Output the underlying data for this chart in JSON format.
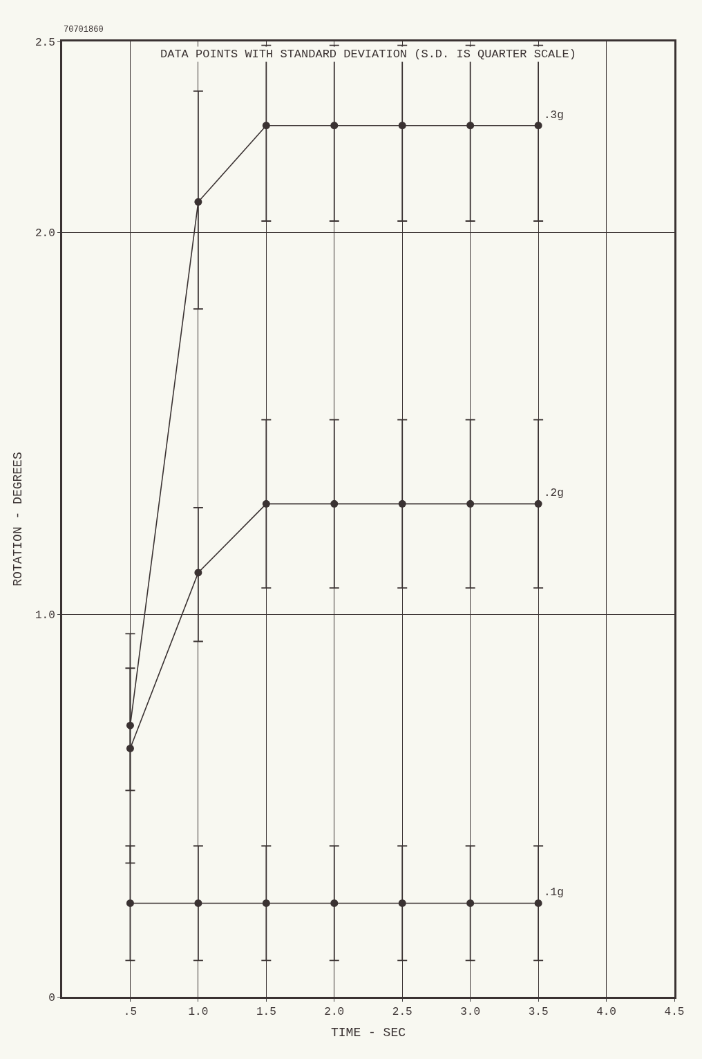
{
  "chart_data": {
    "type": "line",
    "xlabel": "TIME - SEC",
    "ylabel": "ROTATION - DEGREES",
    "annotations": [
      "DATA POINTS WITH STANDARD DEVIATION (S.D. IS QUARTER SCALE)",
      "70701860"
    ],
    "x": [
      0.5,
      1.0,
      1.5,
      2.0,
      2.5,
      3.0,
      3.5
    ],
    "series": [
      {
        "name": ".3g",
        "color": "#3a3232",
        "values": [
          0.71,
          2.08,
          2.28,
          2.28,
          2.28,
          2.28,
          2.28
        ],
        "errors": [
          [
            0.54,
            0.95
          ],
          [
            1.8,
            2.37
          ],
          [
            2.03,
            2.49
          ],
          [
            2.03,
            2.49
          ],
          [
            2.03,
            2.49
          ],
          [
            2.03,
            2.49
          ],
          [
            2.03,
            2.49
          ]
        ]
      },
      {
        "name": ".2g",
        "color": "#3a3232",
        "values": [
          0.65,
          1.11,
          1.29,
          1.29,
          1.29,
          1.29,
          1.29
        ],
        "errors": [
          [
            0.35,
            0.86
          ],
          [
            0.93,
            1.28
          ],
          0.22,
          0.22,
          0.22,
          0.22,
          0.22
        ]
      },
      {
        "name": ".1g",
        "color": "#3a3232",
        "values": [
          0.245,
          0.245,
          0.245,
          0.245,
          0.245,
          0.245,
          0.245
        ],
        "errors": [
          0.15,
          0.15,
          0.15,
          0.15,
          0.15,
          0.15,
          0.15
        ]
      }
    ],
    "xlim": [
      0,
      4.5
    ],
    "xticks": [
      {
        "value": 0.5,
        "label": ".5"
      },
      {
        "value": 1.0,
        "label": "1.0"
      },
      {
        "value": 1.5,
        "label": "1.5"
      },
      {
        "value": 2.0,
        "label": "2.0"
      },
      {
        "value": 2.5,
        "label": "2.5"
      },
      {
        "value": 3.0,
        "label": "3.0"
      },
      {
        "value": 3.5,
        "label": "3.5"
      },
      {
        "value": 4.0,
        "label": "4.0"
      },
      {
        "value": 4.5,
        "label": "4.5"
      }
    ],
    "ylim": [
      0,
      2.5
    ],
    "yticks": [
      0,
      {
        "value": 1.0,
        "label": "1.0"
      },
      {
        "value": 2.0,
        "label": "2.0"
      },
      {
        "value": 2.5,
        "label": "2.5"
      }
    ],
    "grid": true,
    "marker": "circle",
    "line_style": "solid"
  }
}
